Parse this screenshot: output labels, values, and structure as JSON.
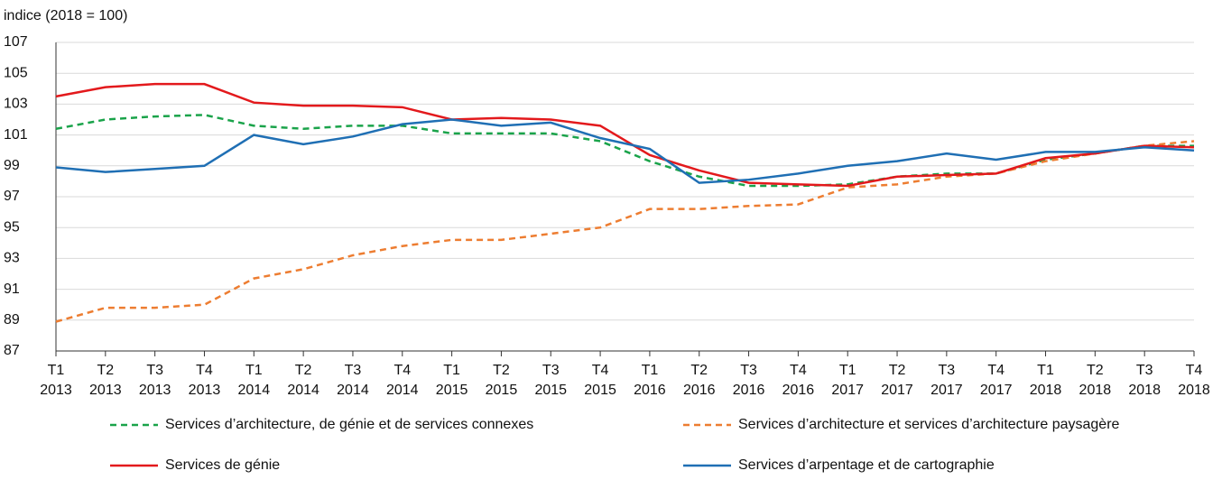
{
  "chart_data": {
    "type": "line",
    "y_label": "indice (2018 = 100)",
    "categories": [
      [
        "T1",
        "2013"
      ],
      [
        "T2",
        "2013"
      ],
      [
        "T3",
        "2013"
      ],
      [
        "T4",
        "2013"
      ],
      [
        "T1",
        "2014"
      ],
      [
        "T2",
        "2014"
      ],
      [
        "T3",
        "2014"
      ],
      [
        "T4",
        "2014"
      ],
      [
        "T1",
        "2015"
      ],
      [
        "T2",
        "2015"
      ],
      [
        "T3",
        "2015"
      ],
      [
        "T4",
        "2015"
      ],
      [
        "T1",
        "2016"
      ],
      [
        "T2",
        "2016"
      ],
      [
        "T3",
        "2016"
      ],
      [
        "T4",
        "2016"
      ],
      [
        "T1",
        "2017"
      ],
      [
        "T2",
        "2017"
      ],
      [
        "T3",
        "2017"
      ],
      [
        "T4",
        "2017"
      ],
      [
        "T1",
        "2018"
      ],
      [
        "T2",
        "2018"
      ],
      [
        "T3",
        "2018"
      ],
      [
        "T4",
        "2018"
      ]
    ],
    "series": [
      {
        "name": "Services d’architecture, de génie et de services connexes",
        "color": "#1aa34a",
        "dashed": true,
        "values": [
          101.4,
          102.0,
          102.2,
          102.3,
          101.6,
          101.4,
          101.6,
          101.6,
          101.1,
          101.1,
          101.1,
          100.6,
          99.3,
          98.3,
          97.7,
          97.7,
          97.8,
          98.3,
          98.5,
          98.5,
          99.4,
          99.8,
          100.3,
          100.3
        ]
      },
      {
        "name": "Services d’architecture et services d’architecture paysagère",
        "color": "#ed7d31",
        "dashed": true,
        "values": [
          88.9,
          89.8,
          89.8,
          90.0,
          91.7,
          92.3,
          93.2,
          93.8,
          94.2,
          94.2,
          94.6,
          95.0,
          96.2,
          96.2,
          96.4,
          96.5,
          97.6,
          97.8,
          98.3,
          98.5,
          99.3,
          99.8,
          100.3,
          100.6
        ]
      },
      {
        "name": "Services de génie",
        "color": "#e3191c",
        "dashed": false,
        "values": [
          103.5,
          104.1,
          104.3,
          104.3,
          103.1,
          102.9,
          102.9,
          102.8,
          102.0,
          102.1,
          102.0,
          101.6,
          99.7,
          98.7,
          97.9,
          97.8,
          97.7,
          98.3,
          98.4,
          98.5,
          99.5,
          99.8,
          100.3,
          100.2
        ]
      },
      {
        "name": "Services d’arpentage et de cartographie",
        "color": "#1f6fb4",
        "dashed": false,
        "values": [
          98.9,
          98.6,
          98.8,
          99.0,
          101.0,
          100.4,
          100.9,
          101.7,
          102.0,
          101.6,
          101.8,
          100.8,
          100.1,
          97.9,
          98.1,
          98.5,
          99.0,
          99.3,
          99.8,
          99.4,
          99.9,
          99.9,
          100.2,
          100.0
        ]
      }
    ],
    "ylim": [
      87,
      107
    ],
    "yticks": [
      87,
      89,
      91,
      93,
      95,
      97,
      99,
      101,
      103,
      105,
      107
    ],
    "grid": true
  }
}
